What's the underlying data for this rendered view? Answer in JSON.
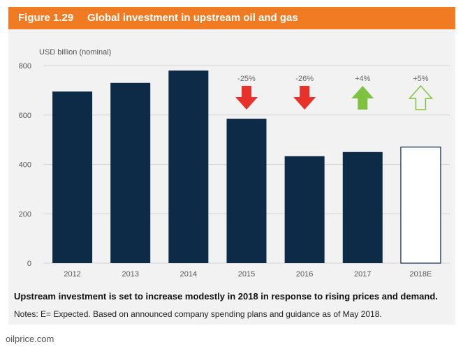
{
  "figure": {
    "number": "Figure 1.29",
    "title": "Global investment in upstream oil and gas"
  },
  "takeaway": "Upstream investment is set to increase modestly in 2018 in response to rising prices and demand.",
  "notes": "Notes: E= Expected. Based on announced company spending plans and guidance as of May 2018.",
  "source": "oilprice.com",
  "colors": {
    "header": "#f07b22",
    "bar": "#0d2a47",
    "arrow_down": "#e8312a",
    "arrow_up": "#7fc242"
  },
  "chart_data": {
    "type": "bar",
    "ylabel": "USD billion (nominal)",
    "ylim": [
      0,
      800
    ],
    "yticks": [
      0,
      200,
      400,
      600,
      800
    ],
    "grid": true,
    "categories": [
      "2012",
      "2013",
      "2014",
      "2015",
      "2016",
      "2017",
      "2018E"
    ],
    "values": [
      695,
      730,
      780,
      585,
      433,
      450,
      470
    ],
    "bar_styles": [
      "solid",
      "solid",
      "solid",
      "solid",
      "solid",
      "solid",
      "outline"
    ],
    "annotations": [
      {
        "category": "2015",
        "label": "-25%",
        "arrow": "down",
        "style": "solid"
      },
      {
        "category": "2016",
        "label": "-26%",
        "arrow": "down",
        "style": "solid"
      },
      {
        "category": "2017",
        "label": "+4%",
        "arrow": "up",
        "style": "solid"
      },
      {
        "category": "2018E",
        "label": "+5%",
        "arrow": "up",
        "style": "outline"
      }
    ]
  }
}
